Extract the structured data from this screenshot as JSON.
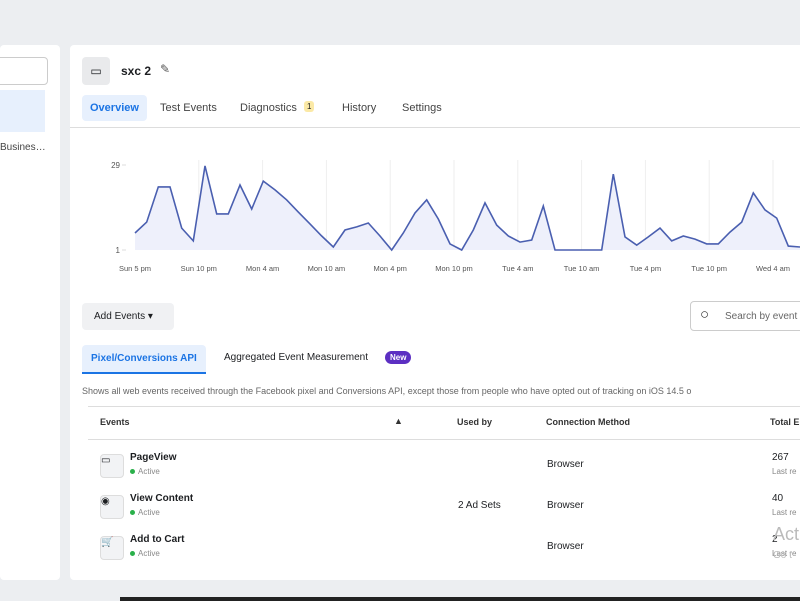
{
  "sidebar": {
    "item": "Busines…"
  },
  "header": {
    "title": "sxc 2"
  },
  "tabs": [
    "Overview",
    "Test Events",
    "Diagnostics",
    "History",
    "Settings"
  ],
  "diagnostics_badge": "1",
  "chart": {
    "type": "line",
    "color": "#4a5fb0",
    "values": [
      6.6,
      10.2,
      21.8,
      21.8,
      8.2,
      4.0,
      28.7,
      12.9,
      12.9,
      22.4,
      14.5,
      23.7,
      20.8,
      17.5,
      13.5,
      9.6,
      5.6,
      2.0,
      7.6,
      8.6,
      9.9,
      5.6,
      1,
      6.6,
      13.2,
      17.5,
      11.2,
      3.0,
      1,
      7.6,
      16.5,
      9.2,
      5.6,
      3.6,
      4.3,
      15.5,
      1,
      1,
      1,
      1,
      1,
      26.0,
      5.3,
      2.6,
      5.3,
      8.2,
      4.0,
      5.6,
      4.6,
      3.0,
      3.0,
      6.9,
      10.2,
      19.8,
      14.2,
      11.5,
      2.3,
      2.0
    ],
    "categories": [
      "Sun 5 pm",
      "Sun 10 pm",
      "Mon 4 am",
      "Mon 10 am",
      "Mon 4 pm",
      "Mon 10 pm",
      "Tue 4 am",
      "Tue 10 am",
      "Tue 4 pm",
      "Tue 10 pm",
      "Wed 4 am"
    ],
    "ylim": [
      1,
      29
    ],
    "yticks": [
      1,
      29
    ]
  },
  "toolbar": {
    "button": "Add Events",
    "search": "Search by event"
  },
  "subtabs": {
    "active": "Pixel/Conversions API",
    "other": "Aggregated Event Measurement",
    "badge": "New"
  },
  "description": "Shows all web events received through the Facebook pixel and Conversions API, except those from people who have opted out of tracking on iOS 14.5 o",
  "table": {
    "columns": [
      "Events",
      "Used by",
      "Connection Method",
      "Total E"
    ],
    "rows": [
      {
        "name": "PageView",
        "status": "Active",
        "used_by": "",
        "method": "Browser",
        "total": "267",
        "sub": "Last re"
      },
      {
        "name": "View Content",
        "status": "Active",
        "used_by": "2 Ad Sets",
        "method": "Browser",
        "total": "40",
        "sub": "Last re"
      },
      {
        "name": "Add to Cart",
        "status": "Active",
        "used_by": "",
        "method": "Browser",
        "total": "2",
        "sub": "Last re"
      }
    ]
  },
  "watermark": [
    "Act",
    "Go t"
  ]
}
